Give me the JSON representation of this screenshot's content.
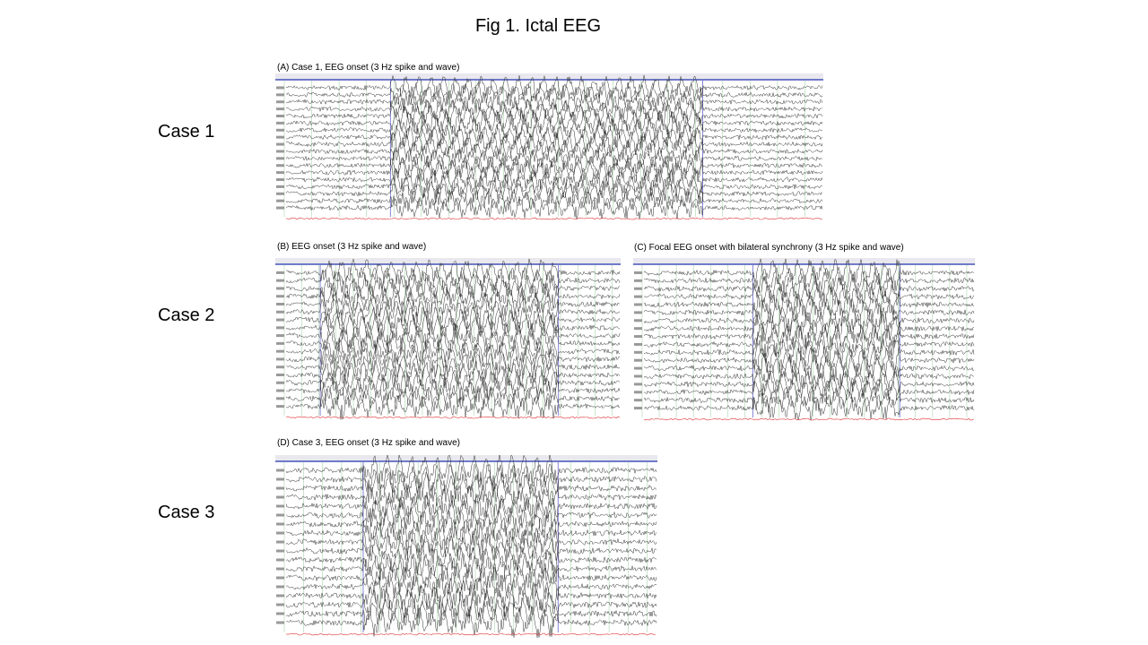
{
  "title": "Fig 1. Ictal EEG",
  "rows": [
    {
      "label": "Case 1",
      "panels": [
        {
          "caption": "(A) Case 1, EEG onset  (3 Hz spike and wave)"
        }
      ]
    },
    {
      "label": "Case 2",
      "panels": [
        {
          "caption": "(B) EEG onset (3 Hz spike and wave)"
        },
        {
          "caption": "(C) Focal EEG onset with bilateral synchrony (3 Hz spike and wave)"
        }
      ]
    },
    {
      "label": "Case 3",
      "panels": [
        {
          "caption": "(D) Case 3, EEG onset  (3 Hz spike and wave)"
        }
      ]
    }
  ]
}
